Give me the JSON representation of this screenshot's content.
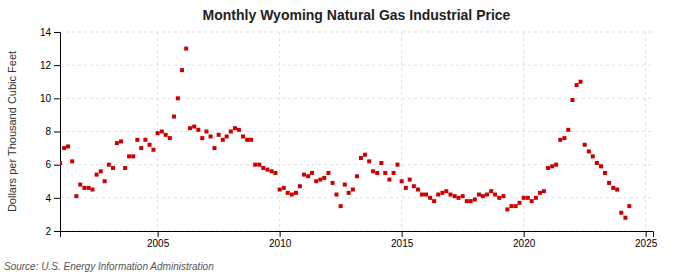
{
  "chart_data": {
    "type": "scatter",
    "title": "Monthly Wyoming Natural Gas Industrial Price",
    "y_label": "Dollars per Thousand Cubic Feet",
    "annotations": [
      "Source: U.S. Energy Information Administration"
    ],
    "color": "#cc0000",
    "marker": "square",
    "grid": true,
    "xlim": [
      2001.0,
      2025.3
    ],
    "xticks": [
      2005,
      2010,
      2015,
      2020,
      2025
    ],
    "ylim": [
      2,
      14
    ],
    "yticks": [
      2,
      4,
      6,
      8,
      10,
      12,
      14
    ],
    "x": [
      2001.0,
      2001.17,
      2001.33,
      2001.5,
      2001.67,
      2001.83,
      2002.0,
      2002.17,
      2002.33,
      2002.5,
      2002.67,
      2002.83,
      2003.0,
      2003.17,
      2003.33,
      2003.5,
      2003.67,
      2003.83,
      2004.0,
      2004.17,
      2004.33,
      2004.5,
      2004.67,
      2004.83,
      2005.0,
      2005.17,
      2005.33,
      2005.5,
      2005.67,
      2005.83,
      2006.0,
      2006.17,
      2006.33,
      2006.5,
      2006.67,
      2006.83,
      2007.0,
      2007.17,
      2007.33,
      2007.5,
      2007.67,
      2007.83,
      2008.0,
      2008.17,
      2008.33,
      2008.5,
      2008.67,
      2008.83,
      2009.0,
      2009.17,
      2009.33,
      2009.5,
      2009.67,
      2009.83,
      2010.0,
      2010.17,
      2010.33,
      2010.5,
      2010.67,
      2010.83,
      2011.0,
      2011.17,
      2011.33,
      2011.5,
      2011.67,
      2011.83,
      2012.0,
      2012.17,
      2012.33,
      2012.5,
      2012.67,
      2012.83,
      2013.0,
      2013.17,
      2013.33,
      2013.5,
      2013.67,
      2013.83,
      2014.0,
      2014.17,
      2014.33,
      2014.5,
      2014.67,
      2014.83,
      2015.0,
      2015.17,
      2015.33,
      2015.5,
      2015.67,
      2015.83,
      2016.0,
      2016.17,
      2016.33,
      2016.5,
      2016.67,
      2016.83,
      2017.0,
      2017.17,
      2017.33,
      2017.5,
      2017.67,
      2017.83,
      2018.0,
      2018.17,
      2018.33,
      2018.5,
      2018.67,
      2018.83,
      2019.0,
      2019.17,
      2019.33,
      2019.5,
      2019.67,
      2019.83,
      2020.0,
      2020.17,
      2020.33,
      2020.5,
      2020.67,
      2020.83,
      2021.0,
      2021.17,
      2021.33,
      2021.5,
      2021.67,
      2021.83,
      2022.0,
      2022.17,
      2022.33,
      2022.5,
      2022.67,
      2022.83,
      2023.0,
      2023.17,
      2023.33,
      2023.5,
      2023.67,
      2023.83,
      2024.0,
      2024.17,
      2024.33
    ],
    "values": [
      6.1,
      7.0,
      7.1,
      6.2,
      4.1,
      4.8,
      4.6,
      4.6,
      4.5,
      5.4,
      5.6,
      5.0,
      6.0,
      5.8,
      7.3,
      7.4,
      5.8,
      6.5,
      6.5,
      7.5,
      7.0,
      7.5,
      7.2,
      6.9,
      7.9,
      8.0,
      7.8,
      7.6,
      8.9,
      10.0,
      11.7,
      13.0,
      8.2,
      8.3,
      8.1,
      7.6,
      8.0,
      7.7,
      7.0,
      7.8,
      7.5,
      7.7,
      8.0,
      8.2,
      8.1,
      7.7,
      7.5,
      7.5,
      6.0,
      6.0,
      5.8,
      5.7,
      5.6,
      5.5,
      4.5,
      4.6,
      4.3,
      4.2,
      4.3,
      4.7,
      5.4,
      5.3,
      5.5,
      5.0,
      5.1,
      5.2,
      5.5,
      4.9,
      4.2,
      3.5,
      4.8,
      4.3,
      4.5,
      5.3,
      6.4,
      6.6,
      6.2,
      5.6,
      5.5,
      6.1,
      5.5,
      5.1,
      5.5,
      6.0,
      5.0,
      4.6,
      5.1,
      4.7,
      4.5,
      4.2,
      4.2,
      4.0,
      3.8,
      4.2,
      4.3,
      4.4,
      4.2,
      4.1,
      4.0,
      4.1,
      3.8,
      3.8,
      3.9,
      4.2,
      4.1,
      4.2,
      4.4,
      4.2,
      4.0,
      4.1,
      3.3,
      3.5,
      3.5,
      3.7,
      4.0,
      4.0,
      3.8,
      4.0,
      4.3,
      4.4,
      5.8,
      5.9,
      6.0,
      7.5,
      7.6,
      8.1,
      9.9,
      10.8,
      11.0,
      7.2,
      6.8,
      6.5,
      6.1,
      5.9,
      5.5,
      4.9,
      4.6,
      4.5,
      3.1,
      2.8,
      3.5
    ]
  }
}
